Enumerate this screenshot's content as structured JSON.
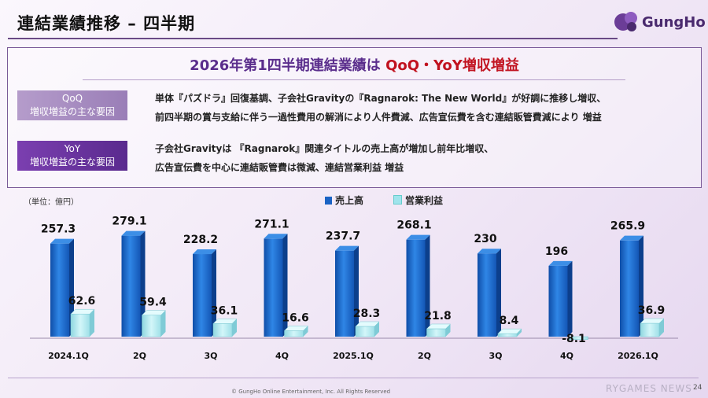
{
  "header": {
    "title": "連結業績推移 – 四半期",
    "logo_text": "GungHo"
  },
  "summary": {
    "headline_main": "2026年第1四半期連結業績は ",
    "headline_accent": "QoQ・YoY増収増益",
    "qoq_badge": [
      "QoQ",
      "増収増益の主な要因"
    ],
    "qoq_text": [
      "単体『パズドラ』回復基調、子会社Gravityの『Ragnarok: The New World』が好調に推移し増収、",
      "前四半期の賞与支給に伴う一過性費用の解消により人件費減、広告宣伝費を含む連結販管費減により 増益"
    ],
    "yoy_badge": [
      "YoY",
      "増収増益の主な要因"
    ],
    "yoy_text": [
      "子会社Gravityは 『Ragnarok』関連タイトルの売上高が増加し前年比増収、",
      "広告宣伝費を中心に連結販管費は微減、連結営業利益 増益"
    ]
  },
  "chart_data": {
    "type": "bar",
    "unit_label": "（単位：億円）",
    "categories": [
      "2024.1Q",
      "2Q",
      "3Q",
      "4Q",
      "2025.1Q",
      "2Q",
      "3Q",
      "4Q",
      "2026.1Q"
    ],
    "series": [
      {
        "name": "売上高",
        "values": [
          257.3,
          279.1,
          228.2,
          271.1,
          237.7,
          268.1,
          230,
          196,
          265.9
        ],
        "color": "#1a63c4"
      },
      {
        "name": "営業利益",
        "values": [
          62.6,
          59.4,
          36.1,
          16.6,
          28.3,
          21.8,
          8.4,
          -8.1,
          36.9
        ],
        "color": "#9fe4ec"
      }
    ],
    "value_labels": {
      "sales": [
        "257.3",
        "279.1",
        "228.2",
        "271.1",
        "237.7",
        "268.1",
        "230",
        "196",
        "265.9"
      ],
      "op": [
        "62.6",
        "59.4",
        "36.1",
        "16.6",
        "28.3",
        "21.8",
        "8.4",
        "-8.1",
        "36.9"
      ]
    },
    "ylim": [
      0,
      300
    ]
  },
  "footer": {
    "copyright": "© GungHo Online Entertainment, Inc. All Rights Reserved",
    "page_number": "24",
    "watermark": "RYGAMES NEWS"
  }
}
